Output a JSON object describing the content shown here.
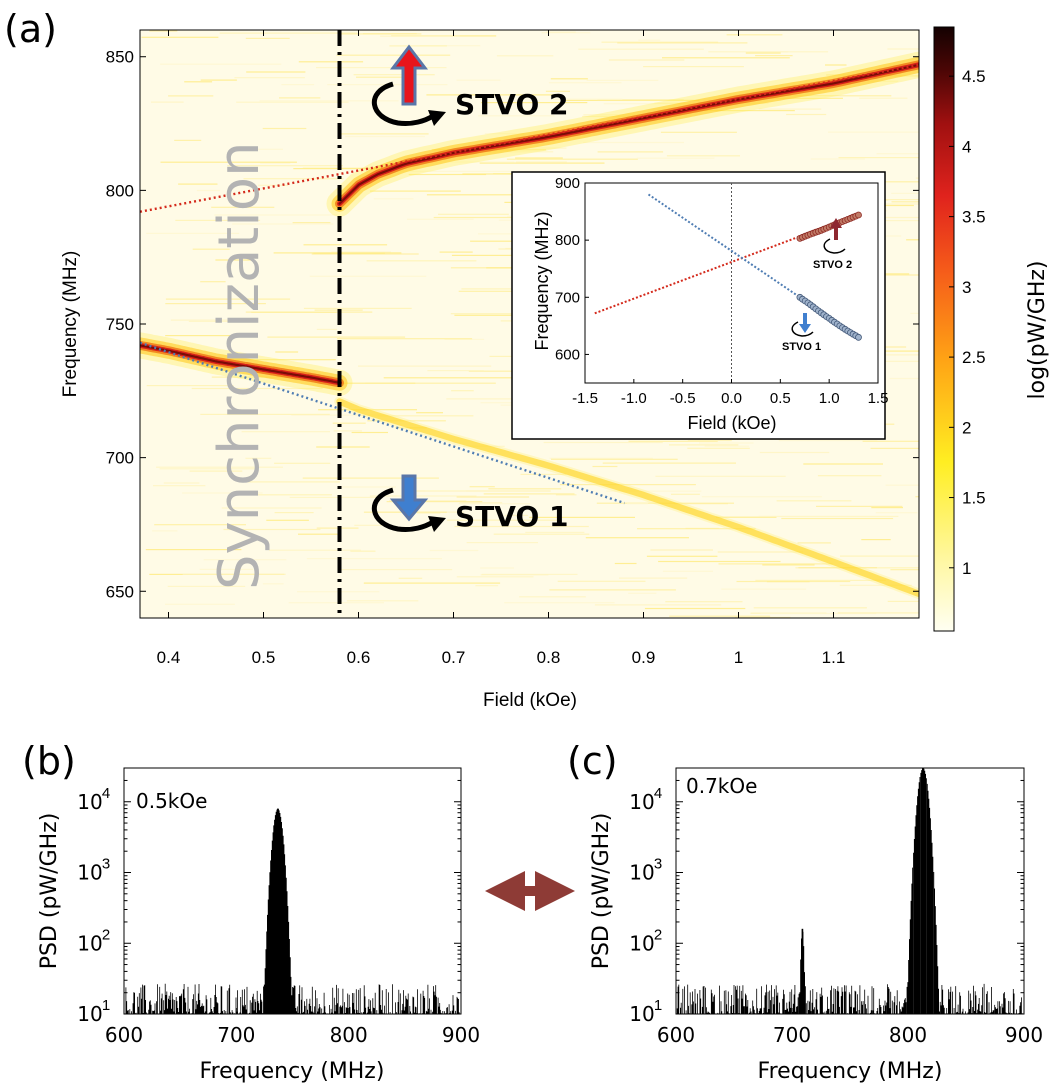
{
  "panels": {
    "a": "(a)",
    "b": "(b)",
    "c": "(c)"
  },
  "colors": {
    "stvo2_arrow": "#e8141b",
    "stvo1_arrow": "#3f7fcf",
    "fit_red": "#d42a1c",
    "fit_blue": "#4f7db3",
    "double_arrow": "#8e3b36"
  },
  "chart_data": [
    {
      "id": "a",
      "type": "heatmap",
      "xlabel": "Field (kOe)",
      "ylabel": "Frequency (MHz)",
      "xlim": [
        0.37,
        1.19
      ],
      "ylim": [
        640,
        860
      ],
      "xticks": [
        0.4,
        0.5,
        0.6,
        0.7,
        0.8,
        0.9,
        1,
        1.1
      ],
      "yticks": [
        650,
        700,
        750,
        800,
        850
      ],
      "xtick_labels": [
        "0.4",
        "0.5",
        "0.6",
        "0.7",
        "0.8",
        "0.9",
        "1",
        "1.1"
      ],
      "ytick_labels": [
        "650",
        "700",
        "750",
        "800",
        "850"
      ],
      "colorbar": {
        "label": "log(pW/GHz)",
        "range": [
          0.55,
          4.85
        ],
        "ticks": [
          1,
          1.5,
          2,
          2.5,
          3,
          3.5,
          4,
          4.5
        ],
        "tick_labels": [
          "1",
          "1.5",
          "2",
          "2.5",
          "3",
          "3.5",
          "4",
          "4.5"
        ]
      },
      "annotations": {
        "sync_text": "Synchronization",
        "stvo2": "STVO 2",
        "stvo1": "STVO 1",
        "boundary_field": 0.58
      },
      "series": [
        {
          "name": "sync-mode",
          "x": [
            0.37,
            0.4,
            0.45,
            0.5,
            0.55,
            0.58
          ],
          "y": [
            742,
            740,
            736,
            733,
            730,
            728
          ],
          "intensity": 3.7
        },
        {
          "name": "STVO 2",
          "x": [
            0.58,
            0.6,
            0.62,
            0.65,
            0.7,
            0.8,
            0.9,
            1.0,
            1.1,
            1.19
          ],
          "y": [
            795,
            802,
            806,
            810,
            814,
            820,
            827,
            834,
            840,
            847
          ],
          "intensity": 3.5
        },
        {
          "name": "STVO 1",
          "x": [
            0.58,
            0.6,
            0.7,
            0.8,
            0.9,
            1.0,
            1.1,
            1.19
          ],
          "y": [
            721,
            718,
            707,
            697,
            686,
            674,
            661,
            649
          ],
          "intensity": 1.8
        },
        {
          "name": "STVO 2 fit",
          "style": "dotted",
          "x": [
            0.37,
            1.19
          ],
          "y": [
            792,
            847
          ]
        },
        {
          "name": "STVO 1 fit",
          "style": "dotted",
          "x": [
            0.37,
            0.88
          ],
          "y": [
            743,
            683
          ]
        }
      ],
      "inset": {
        "xlabel": "Field (kOe)",
        "ylabel": "Frequency (MHz)",
        "xlim": [
          -1.5,
          1.5
        ],
        "ylim": [
          550,
          900
        ],
        "xticks": [
          -1.5,
          -1.0,
          -0.5,
          0.0,
          0.5,
          1.0,
          1.5
        ],
        "yticks": [
          600,
          700,
          800,
          900
        ],
        "xtick_labels": [
          "-1.5",
          "-1.0",
          "-0.5",
          "0.0",
          "0.5",
          "1.0",
          "1.5"
        ],
        "ytick_labels": [
          "600",
          "700",
          "800",
          "900"
        ],
        "stvo2": "STVO 2",
        "stvo1": "STVO 1",
        "series": [
          {
            "name": "STVO 2 fit",
            "style": "dotted",
            "x": [
              -1.4,
              1.3
            ],
            "y": [
              672,
              845
            ]
          },
          {
            "name": "STVO 1 fit",
            "style": "dotted",
            "x": [
              -0.85,
              0.7
            ],
            "y": [
              880,
              700
            ]
          },
          {
            "name": "STVO 2 data",
            "style": "markers",
            "x": [
              0.7,
              0.8,
              0.9,
              1.0,
              1.1,
              1.2,
              1.3
            ],
            "y": [
              803,
              810,
              816,
              823,
              830,
              837,
              844
            ]
          },
          {
            "name": "STVO 1 data",
            "style": "markers",
            "x": [
              0.7,
              0.8,
              0.9,
              1.0,
              1.1,
              1.2,
              1.3
            ],
            "y": [
              700,
              688,
              675,
              663,
              651,
              640,
              630
            ]
          }
        ]
      }
    },
    {
      "id": "b",
      "type": "line",
      "title": "0.5kOe",
      "xlabel": "Frequency (MHz)",
      "ylabel": "PSD (pW/GHz)",
      "xlim": [
        600,
        900
      ],
      "yscale": "log",
      "ylim": [
        10,
        30000
      ],
      "xticks": [
        600,
        700,
        800,
        900
      ],
      "xtick_labels": [
        "600",
        "700",
        "800",
        "900"
      ],
      "yticks": [
        10,
        100,
        1000,
        10000
      ],
      "ytick_bases": [
        "10",
        "10",
        "10",
        "10"
      ],
      "ytick_exps": [
        "1",
        "2",
        "3",
        "4"
      ],
      "peaks": [
        {
          "x": 737,
          "y": 8000
        }
      ],
      "noise_level": 22
    },
    {
      "id": "c",
      "type": "line",
      "title": "0.7kOe",
      "xlabel": "Frequency (MHz)",
      "ylabel": "PSD (pW/GHz)",
      "xlim": [
        600,
        900
      ],
      "yscale": "log",
      "ylim": [
        10,
        30000
      ],
      "xticks": [
        600,
        700,
        800,
        900
      ],
      "xtick_labels": [
        "600",
        "700",
        "800",
        "900"
      ],
      "yticks": [
        10,
        100,
        1000,
        10000
      ],
      "ytick_bases": [
        "10",
        "10",
        "10",
        "10"
      ],
      "ytick_exps": [
        "1",
        "2",
        "3",
        "4"
      ],
      "peaks": [
        {
          "x": 709,
          "y": 160
        },
        {
          "x": 813,
          "y": 30000
        }
      ],
      "noise_level": 22
    }
  ]
}
